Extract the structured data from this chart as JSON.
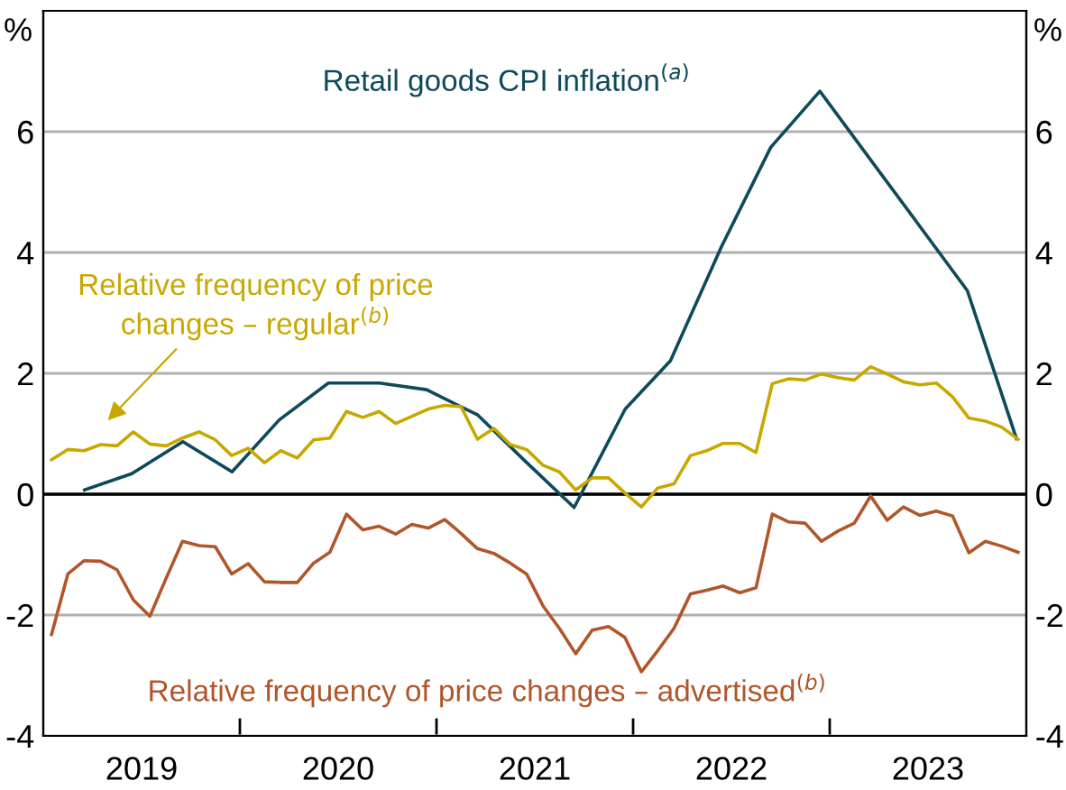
{
  "chart_data": {
    "type": "line",
    "ylabel": "%",
    "y2label": "%",
    "xlim": [
      2019.0,
      2024.0
    ],
    "xticks": [
      {
        "value": 2019.5,
        "label": "2019"
      },
      {
        "value": 2020,
        "label": null
      },
      {
        "value": 2020.5,
        "label": "2020"
      },
      {
        "value": 2021,
        "label": null
      },
      {
        "value": 2021.5,
        "label": "2021"
      },
      {
        "value": 2022,
        "label": null
      },
      {
        "value": 2022.5,
        "label": "2022"
      },
      {
        "value": 2023,
        "label": null
      },
      {
        "value": 2023.5,
        "label": "2023"
      }
    ],
    "ylim": [
      -4,
      8
    ],
    "yticks": [
      -4,
      -2,
      0,
      2,
      4,
      6
    ],
    "y2lim": [
      -4,
      8
    ],
    "y2ticks": [
      -4,
      -2,
      0,
      2,
      4,
      6
    ],
    "grid": "y",
    "legend": false,
    "ref_lines": [
      {
        "axis": "y",
        "value": 0,
        "color": "#000000"
      }
    ],
    "series": [
      {
        "name": "Retail goods CPI inflation$^{(a)}$",
        "color": "#0e4a5a",
        "x": [
          2019.21,
          2019.45,
          2019.71,
          2019.96,
          2020.2,
          2020.45,
          2020.71,
          2020.95,
          2021.21,
          2021.45,
          2021.7,
          2021.96,
          2022.19,
          2022.45,
          2022.7,
          2022.95,
          2023.2,
          2023.45,
          2023.7,
          2023.95
        ],
        "values": [
          0.07,
          0.34,
          0.87,
          0.37,
          1.23,
          1.84,
          1.84,
          1.73,
          1.31,
          0.55,
          -0.22,
          1.41,
          2.21,
          4.1,
          5.74,
          6.67,
          5.57,
          4.47,
          3.37,
          0.92
        ]
      },
      {
        "name": "Relative frequency of price changes – regular$^{(b)}$",
        "color": "#c8a800",
        "values": [
          0.57,
          0.74,
          0.72,
          0.82,
          0.8,
          1.03,
          0.83,
          0.8,
          0.93,
          1.03,
          0.9,
          0.64,
          0.76,
          0.52,
          0.72,
          0.6,
          0.9,
          0.93,
          1.37,
          1.27,
          1.37,
          1.17,
          1.29,
          1.41,
          1.47,
          1.45,
          0.91,
          1.09,
          0.82,
          0.74,
          0.48,
          0.37,
          0.07,
          0.27,
          0.27,
          0.02,
          -0.21,
          0.1,
          0.17,
          0.64,
          0.72,
          0.84,
          0.84,
          0.69,
          1.83,
          1.91,
          1.89,
          1.99,
          1.93,
          1.89,
          2.11,
          1.99,
          1.86,
          1.81,
          1.84,
          1.61,
          1.26,
          1.21,
          1.11,
          0.91
        ]
      },
      {
        "name": "Relative frequency of price changes – advertised$^{(b)}$",
        "color": "#b0562a",
        "values": [
          -2.32,
          -1.32,
          -1.1,
          -1.11,
          -1.25,
          -1.75,
          -2.02,
          -1.39,
          -0.78,
          -0.85,
          -0.87,
          -1.32,
          -1.15,
          -1.45,
          -1.46,
          -1.46,
          -1.14,
          -0.96,
          -0.33,
          -0.59,
          -0.53,
          -0.66,
          -0.5,
          -0.56,
          -0.42,
          -0.65,
          -0.9,
          -0.98,
          -1.14,
          -1.32,
          -1.85,
          -2.22,
          -2.64,
          -2.25,
          -2.19,
          -2.37,
          -2.94,
          -2.59,
          -2.22,
          -1.65,
          -1.59,
          -1.52,
          -1.63,
          -1.55,
          -0.33,
          -0.46,
          -0.48,
          -0.78,
          -0.61,
          -0.48,
          -0.03,
          -0.43,
          -0.21,
          -0.35,
          -0.28,
          -0.36,
          -0.97,
          -0.78,
          -0.86,
          -0.96
        ]
      }
    ],
    "x": [
      2019.042,
      2019.125,
      2019.208,
      2019.292,
      2019.375,
      2019.458,
      2019.542,
      2019.625,
      2019.708,
      2019.792,
      2019.875,
      2019.958,
      2020.042,
      2020.125,
      2020.208,
      2020.292,
      2020.375,
      2020.458,
      2020.542,
      2020.625,
      2020.708,
      2020.792,
      2020.875,
      2020.958,
      2021.042,
      2021.125,
      2021.208,
      2021.292,
      2021.375,
      2021.458,
      2021.542,
      2021.625,
      2021.708,
      2021.792,
      2021.875,
      2021.958,
      2022.042,
      2022.125,
      2022.208,
      2022.292,
      2022.375,
      2022.458,
      2022.542,
      2022.625,
      2022.708,
      2022.792,
      2022.875,
      2022.958,
      2023.042,
      2023.125,
      2023.208,
      2023.292,
      2023.375,
      2023.458,
      2023.542,
      2023.625,
      2023.708,
      2023.792,
      2023.875,
      2023.958
    ]
  }
}
